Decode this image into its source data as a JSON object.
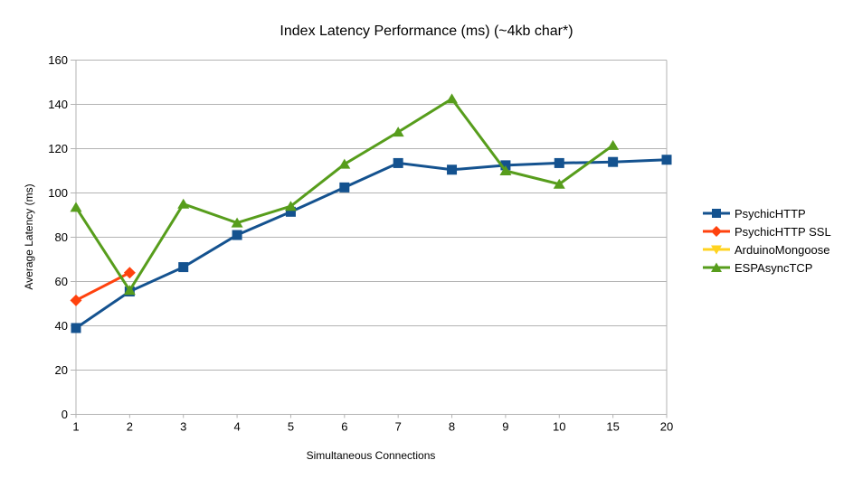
{
  "title": "Index Latency Performance (ms) (~4kb char*)",
  "chart_data": {
    "type": "line",
    "title": "Index Latency Performance (ms) (~4kb char*)",
    "xlabel": "Simultaneous Connections",
    "ylabel": "Average Latency (ms)",
    "ylim": [
      0,
      160
    ],
    "ytick_step": 20,
    "grid": true,
    "legend_position": "right",
    "categories": [
      "1",
      "2",
      "3",
      "4",
      "5",
      "6",
      "7",
      "8",
      "9",
      "10",
      "15",
      "20"
    ],
    "series": [
      {
        "name": "PsychicHTTP",
        "color": "#14528F",
        "marker": "square",
        "values": [
          39,
          55.5,
          66.5,
          81,
          91.5,
          102.5,
          113.5,
          110.5,
          112.5,
          113.5,
          114,
          115
        ]
      },
      {
        "name": "PsychicHTTP SSL",
        "color": "#FF420E",
        "marker": "diamond",
        "values": [
          51.5,
          64,
          null,
          null,
          null,
          null,
          null,
          null,
          null,
          null,
          null,
          null
        ]
      },
      {
        "name": "ArduinoMongoose",
        "color": "#FFD320",
        "marker": "triangle-down",
        "values": [
          null,
          null,
          null,
          null,
          null,
          null,
          null,
          null,
          null,
          null,
          null,
          null
        ]
      },
      {
        "name": "ESPAsyncTCP",
        "color": "#579D1C",
        "marker": "triangle-up",
        "values": [
          93.5,
          56,
          95,
          86.5,
          94,
          113,
          127.5,
          142.5,
          110,
          104,
          121.5,
          null
        ]
      }
    ],
    "axis_color": "#B3B3B3",
    "grid_color": "#B3B3B3"
  }
}
